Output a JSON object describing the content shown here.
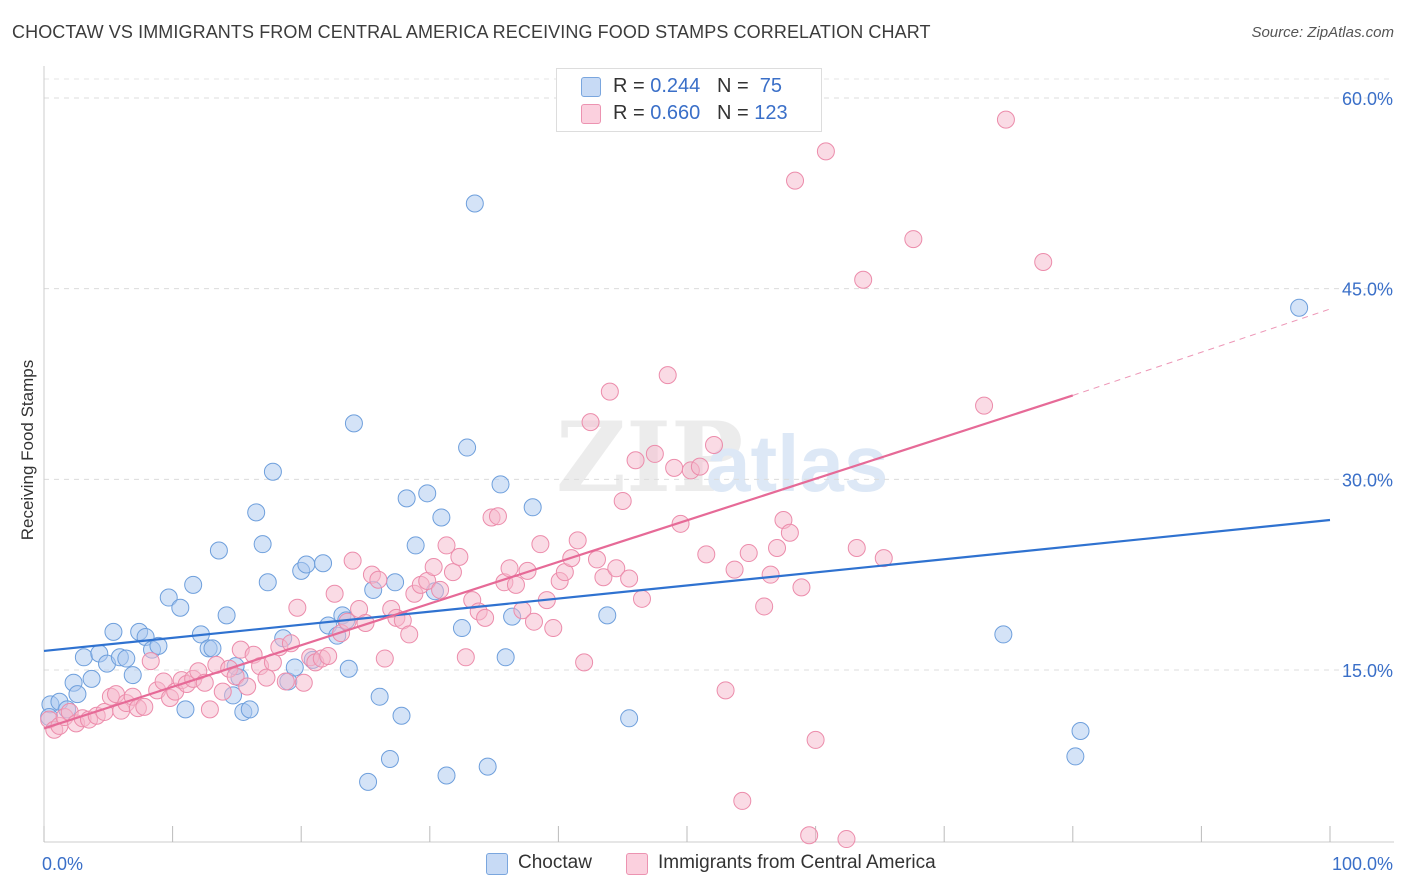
{
  "title": "CHOCTAW VS IMMIGRANTS FROM CENTRAL AMERICA RECEIVING FOOD STAMPS CORRELATION CHART",
  "source": "Source: ZipAtlas.com",
  "watermark": {
    "zip": "ZIP",
    "atlas": "atlas"
  },
  "legend_top": [
    {
      "r_label": "R = ",
      "r_value": "0.244",
      "n_label": "N = ",
      "n_value": "75",
      "color": "#a9c8f0"
    },
    {
      "r_label": "R = ",
      "r_value": "0.660",
      "n_label": "N = ",
      "n_value": "123",
      "color": "#f6b8cb"
    }
  ],
  "chart_data": {
    "type": "scatter",
    "xlabel": "",
    "ylabel": "Receiving Food Stamps",
    "xlim": [
      0,
      100
    ],
    "ylim": [
      0,
      62
    ],
    "x_tick_labels": [
      "0.0%",
      "100.0%"
    ],
    "y_ticks": [
      15,
      30,
      45,
      60
    ],
    "y_tick_labels": [
      "15.0%",
      "30.0%",
      "45.0%",
      "60.0%"
    ],
    "grid": true,
    "legend_position": "bottom",
    "series": [
      {
        "name": "Choctaw",
        "color": "#a9c8f0",
        "stroke": "#6e9fdc",
        "trend": {
          "x": [
            0,
            100
          ],
          "y": [
            16.5,
            26.8
          ],
          "color": "#2f72d0"
        },
        "points": [
          [
            0.5,
            12.3
          ],
          [
            1.2,
            12.5
          ],
          [
            1.8,
            11.9
          ],
          [
            2.3,
            14.0
          ],
          [
            2.6,
            13.1
          ],
          [
            3.1,
            16.0
          ],
          [
            3.7,
            14.3
          ],
          [
            4.3,
            16.3
          ],
          [
            4.9,
            15.5
          ],
          [
            5.4,
            18.0
          ],
          [
            5.9,
            16.0
          ],
          [
            6.4,
            15.9
          ],
          [
            6.9,
            14.6
          ],
          [
            7.4,
            18.0
          ],
          [
            7.9,
            17.6
          ],
          [
            8.4,
            16.6
          ],
          [
            8.9,
            16.9
          ],
          [
            9.7,
            20.7
          ],
          [
            10.6,
            19.9
          ],
          [
            11.0,
            11.9
          ],
          [
            11.6,
            21.7
          ],
          [
            12.2,
            17.8
          ],
          [
            12.8,
            16.7
          ],
          [
            13.1,
            16.7
          ],
          [
            13.6,
            24.4
          ],
          [
            14.2,
            19.3
          ],
          [
            14.7,
            13.0
          ],
          [
            15.2,
            14.4
          ],
          [
            15.5,
            11.7
          ],
          [
            16.0,
            11.9
          ],
          [
            16.5,
            27.4
          ],
          [
            17.0,
            24.9
          ],
          [
            17.4,
            21.9
          ],
          [
            17.8,
            30.6
          ],
          [
            18.6,
            17.5
          ],
          [
            19.0,
            14.1
          ],
          [
            19.5,
            15.2
          ],
          [
            20.0,
            22.8
          ],
          [
            20.4,
            23.3
          ],
          [
            20.9,
            15.8
          ],
          [
            21.7,
            23.4
          ],
          [
            22.1,
            18.5
          ],
          [
            22.8,
            17.7
          ],
          [
            23.2,
            19.3
          ],
          [
            23.7,
            15.1
          ],
          [
            24.1,
            34.4
          ],
          [
            25.2,
            6.2
          ],
          [
            25.6,
            21.3
          ],
          [
            26.1,
            12.9
          ],
          [
            26.9,
            8.0
          ],
          [
            27.3,
            21.9
          ],
          [
            27.8,
            11.4
          ],
          [
            28.2,
            28.5
          ],
          [
            28.9,
            24.8
          ],
          [
            29.8,
            28.9
          ],
          [
            30.4,
            21.2
          ],
          [
            30.9,
            27.0
          ],
          [
            31.3,
            6.7
          ],
          [
            32.5,
            18.3
          ],
          [
            32.9,
            32.5
          ],
          [
            33.5,
            51.7
          ],
          [
            34.5,
            7.4
          ],
          [
            35.5,
            29.6
          ],
          [
            35.9,
            16.0
          ],
          [
            36.4,
            19.2
          ],
          [
            38.0,
            27.8
          ],
          [
            43.8,
            19.3
          ],
          [
            45.5,
            11.2
          ],
          [
            74.6,
            17.8
          ],
          [
            80.2,
            8.2
          ],
          [
            80.6,
            10.2
          ],
          [
            97.6,
            43.5
          ],
          [
            0.4,
            11.3
          ],
          [
            23.5,
            18.9
          ],
          [
            14.9,
            15.3
          ]
        ]
      },
      {
        "name": "Immigrants from Central America",
        "color": "#f6b8cb",
        "stroke": "#ec8cab",
        "trend": {
          "x": [
            0,
            80
          ],
          "y": [
            10.4,
            36.6
          ],
          "dashed_to": [
            100,
            43.4
          ],
          "color": "#e66a97"
        },
        "points": [
          [
            0.4,
            11.1
          ],
          [
            0.8,
            10.3
          ],
          [
            1.2,
            10.6
          ],
          [
            1.6,
            11.3
          ],
          [
            2.0,
            11.7
          ],
          [
            2.5,
            10.8
          ],
          [
            3.0,
            11.2
          ],
          [
            3.5,
            11.1
          ],
          [
            4.1,
            11.4
          ],
          [
            4.7,
            11.7
          ],
          [
            5.2,
            12.9
          ],
          [
            5.6,
            13.1
          ],
          [
            6.0,
            11.8
          ],
          [
            6.4,
            12.4
          ],
          [
            6.9,
            12.9
          ],
          [
            7.3,
            12.0
          ],
          [
            7.8,
            12.1
          ],
          [
            8.3,
            15.7
          ],
          [
            8.8,
            13.4
          ],
          [
            9.3,
            14.1
          ],
          [
            9.8,
            12.8
          ],
          [
            10.2,
            13.3
          ],
          [
            10.7,
            14.2
          ],
          [
            11.1,
            13.9
          ],
          [
            11.6,
            14.3
          ],
          [
            12.0,
            14.9
          ],
          [
            12.5,
            14.0
          ],
          [
            12.9,
            11.9
          ],
          [
            13.4,
            15.4
          ],
          [
            13.9,
            13.3
          ],
          [
            14.4,
            15.1
          ],
          [
            14.9,
            14.5
          ],
          [
            15.3,
            16.6
          ],
          [
            15.8,
            13.7
          ],
          [
            16.3,
            16.2
          ],
          [
            16.8,
            15.3
          ],
          [
            17.3,
            14.4
          ],
          [
            17.8,
            15.6
          ],
          [
            18.3,
            16.8
          ],
          [
            18.8,
            14.1
          ],
          [
            19.2,
            17.1
          ],
          [
            19.7,
            19.9
          ],
          [
            20.2,
            14.0
          ],
          [
            20.7,
            16.0
          ],
          [
            21.1,
            15.6
          ],
          [
            21.6,
            15.9
          ],
          [
            22.1,
            16.1
          ],
          [
            22.6,
            21.0
          ],
          [
            23.1,
            17.9
          ],
          [
            23.6,
            18.8
          ],
          [
            24.0,
            23.6
          ],
          [
            24.5,
            19.8
          ],
          [
            25.0,
            18.7
          ],
          [
            25.5,
            22.5
          ],
          [
            26.0,
            22.1
          ],
          [
            26.5,
            15.9
          ],
          [
            27.0,
            19.8
          ],
          [
            27.4,
            19.1
          ],
          [
            27.9,
            18.9
          ],
          [
            28.4,
            17.8
          ],
          [
            28.8,
            21.0
          ],
          [
            29.3,
            21.7
          ],
          [
            29.8,
            22.0
          ],
          [
            30.3,
            23.1
          ],
          [
            30.8,
            21.3
          ],
          [
            31.3,
            24.8
          ],
          [
            31.8,
            22.7
          ],
          [
            32.3,
            23.9
          ],
          [
            32.8,
            16.0
          ],
          [
            33.3,
            20.5
          ],
          [
            33.8,
            19.6
          ],
          [
            34.3,
            19.1
          ],
          [
            34.8,
            27.0
          ],
          [
            35.3,
            27.1
          ],
          [
            35.8,
            21.9
          ],
          [
            36.2,
            23.0
          ],
          [
            36.7,
            21.7
          ],
          [
            37.2,
            19.7
          ],
          [
            37.6,
            22.8
          ],
          [
            38.1,
            18.8
          ],
          [
            38.6,
            24.9
          ],
          [
            39.1,
            20.5
          ],
          [
            39.6,
            18.3
          ],
          [
            40.1,
            22.0
          ],
          [
            40.5,
            22.7
          ],
          [
            41.0,
            23.8
          ],
          [
            41.5,
            25.2
          ],
          [
            42.0,
            15.6
          ],
          [
            42.5,
            34.5
          ],
          [
            43.0,
            23.7
          ],
          [
            43.5,
            22.3
          ],
          [
            44.0,
            36.9
          ],
          [
            44.5,
            23.0
          ],
          [
            45.0,
            28.3
          ],
          [
            45.5,
            22.2
          ],
          [
            46.0,
            31.5
          ],
          [
            46.5,
            20.6
          ],
          [
            47.5,
            32.0
          ],
          [
            48.5,
            38.2
          ],
          [
            49.0,
            30.9
          ],
          [
            49.5,
            26.5
          ],
          [
            50.3,
            30.7
          ],
          [
            51.0,
            31.0
          ],
          [
            51.5,
            24.1
          ],
          [
            52.1,
            32.7
          ],
          [
            53.0,
            13.4
          ],
          [
            53.7,
            22.9
          ],
          [
            54.3,
            4.7
          ],
          [
            54.8,
            24.2
          ],
          [
            56.0,
            20.0
          ],
          [
            56.5,
            22.5
          ],
          [
            57.0,
            24.6
          ],
          [
            57.5,
            26.8
          ],
          [
            58.0,
            25.8
          ],
          [
            58.4,
            53.5
          ],
          [
            58.9,
            21.5
          ],
          [
            59.5,
            2.0
          ],
          [
            60.0,
            9.5
          ],
          [
            60.8,
            55.8
          ],
          [
            62.4,
            1.7
          ],
          [
            63.2,
            24.6
          ],
          [
            63.7,
            45.7
          ],
          [
            65.3,
            23.8
          ],
          [
            67.6,
            48.9
          ],
          [
            73.1,
            35.8
          ],
          [
            74.8,
            58.3
          ],
          [
            77.7,
            47.1
          ]
        ]
      }
    ]
  },
  "bottom_legend": [
    {
      "label": "Choctaw",
      "color": "#a9c8f0"
    },
    {
      "label": "Immigrants from Central America",
      "color": "#f6b8cb"
    }
  ]
}
